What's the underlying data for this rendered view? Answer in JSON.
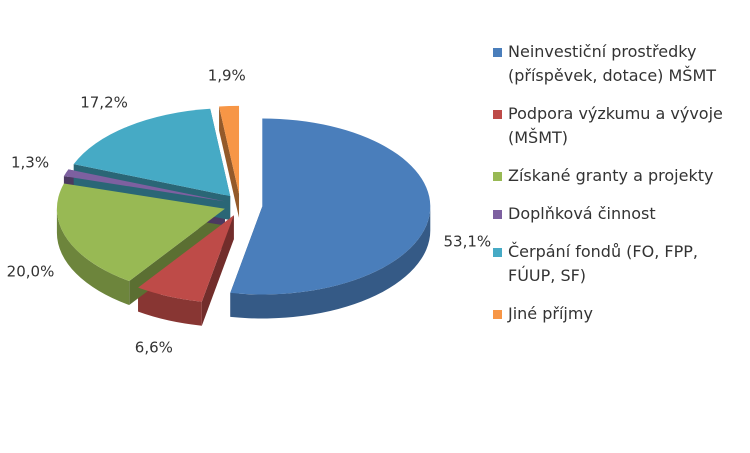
{
  "chart_data": {
    "type": "pie",
    "categories": [
      "Neinvestiční prostředky (příspěvek, dotace) MŠMT",
      "Podpora výzkumu a vývoje (MŠMT)",
      "Získané granty a projekty",
      "Doplňková činnost",
      "Čerpání fondů (FO, FPP, FÚUP, SF)",
      "Jiné příjmy"
    ],
    "values": [
      53.1,
      6.6,
      20.0,
      1.3,
      17.2,
      1.9
    ],
    "value_labels": [
      "53,1%",
      "6,6%",
      "20,0%",
      "1,3%",
      "17,2%",
      "1,9%"
    ],
    "colors": [
      "#4a7ebb",
      "#be4b48",
      "#98b954",
      "#7d60a0",
      "#46aac5",
      "#f79646"
    ],
    "legend": "right"
  }
}
